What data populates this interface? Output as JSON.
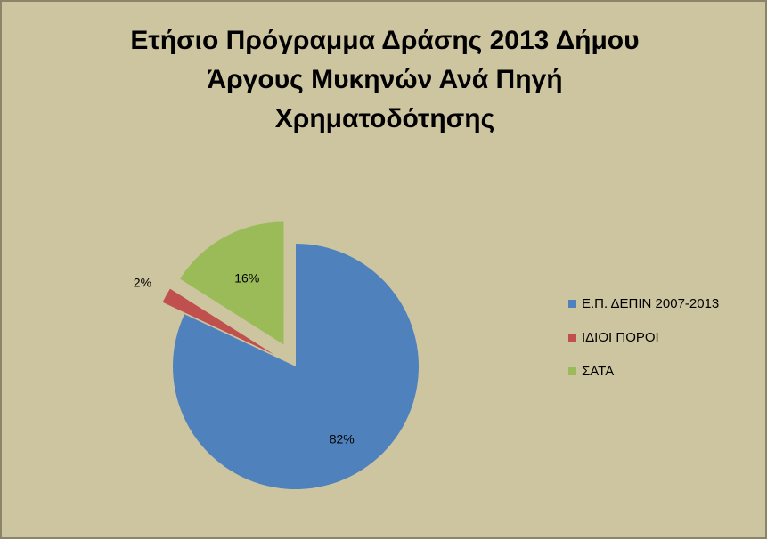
{
  "chart_data": {
    "type": "pie",
    "title": "Ετήσιο Πρόγραμμα Δράσης 2013 Δήμου\nΆργους Μυκηνών Ανά Πηγή\nΧρηματοδότησης",
    "categories": [
      "Ε.Π. ΔΕΠΙΝ 2007-2013",
      "ΙΔΙΟΙ ΠΟΡΟΙ",
      "ΣΑΤΑ"
    ],
    "values": [
      82,
      2,
      16
    ],
    "data_labels": [
      "82%",
      "2%",
      "16%"
    ],
    "colors": [
      "#4f81bd",
      "#c0504d",
      "#9bbb59"
    ],
    "exploded": [
      false,
      true,
      true
    ],
    "legend_position": "right"
  }
}
